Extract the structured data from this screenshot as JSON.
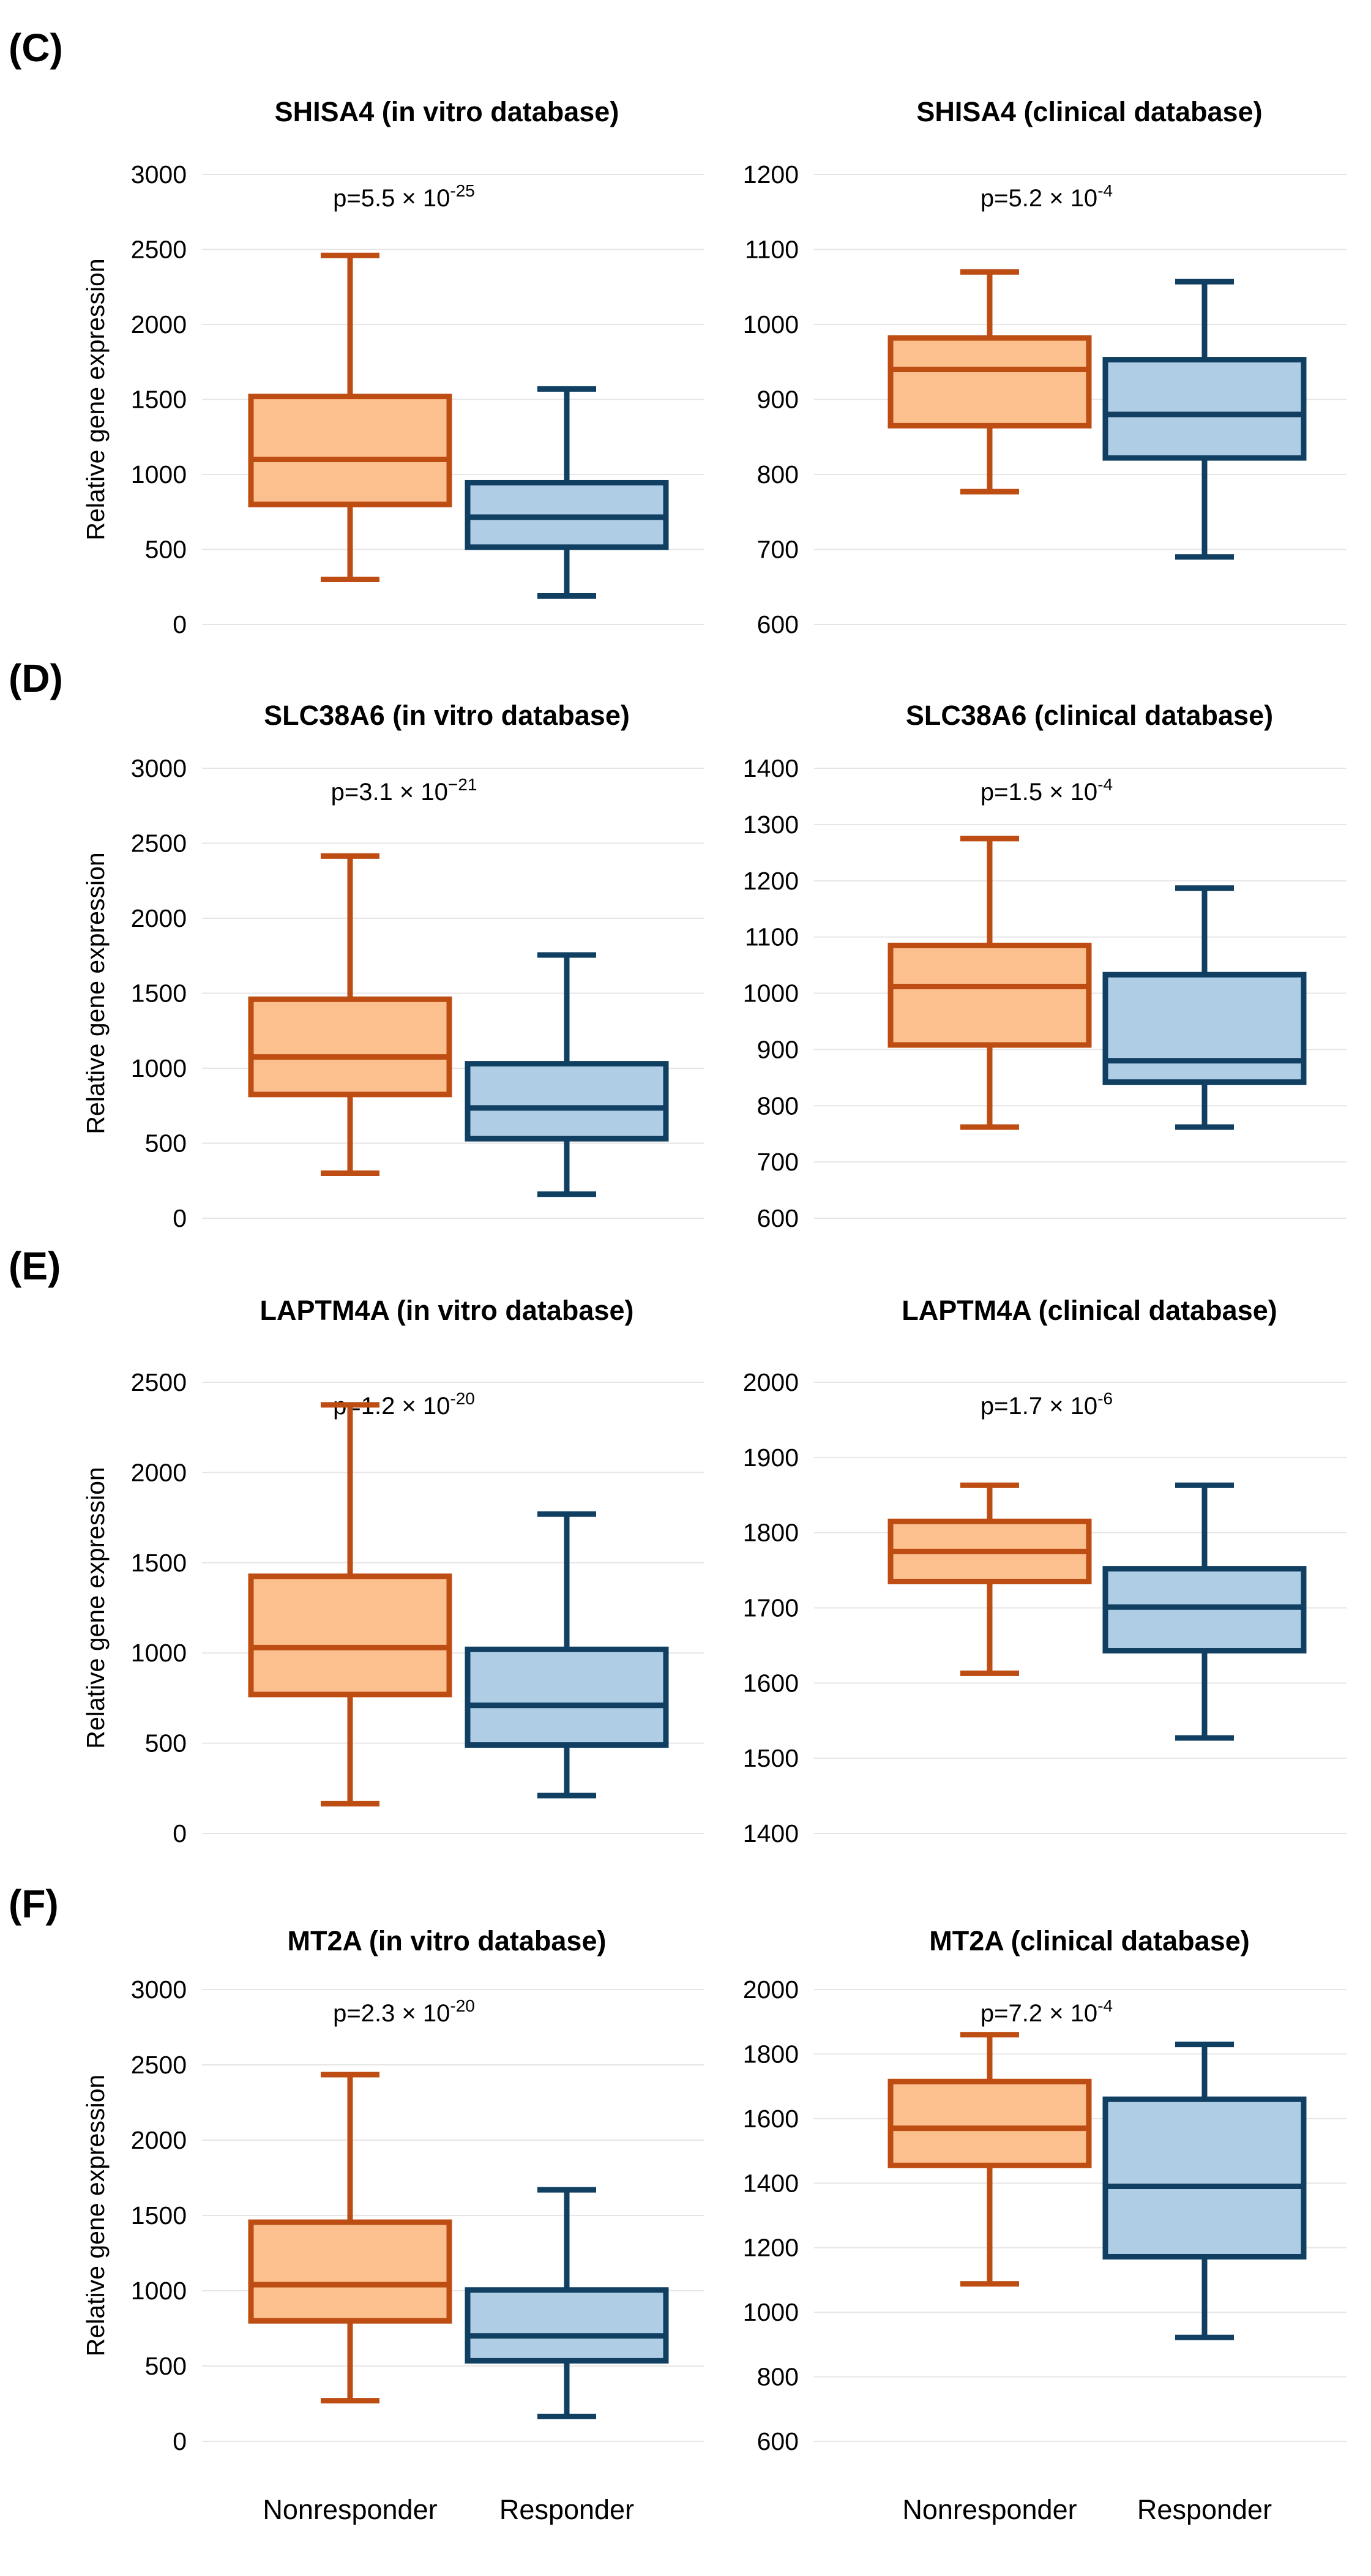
{
  "colors": {
    "nonresponder_fill": "#fcc08f",
    "nonresponder_stroke": "#bd4d12",
    "responder_fill": "#b0cde6",
    "responder_stroke": "#103f62",
    "grid": "#e6e6e6"
  },
  "x_categories": [
    "Nonresponder",
    "Responder"
  ],
  "panels": [
    {
      "label": "(C)"
    },
    {
      "label": "(D)"
    },
    {
      "label": "(E)"
    },
    {
      "label": "(F)"
    }
  ],
  "chart_data": [
    {
      "panel": 0,
      "type": "boxplot",
      "title": "SHISA4 (in vitro database)",
      "ylabel": "Relative gene expression",
      "ylim": [
        0,
        3000
      ],
      "yticks": [
        0,
        500,
        1000,
        1500,
        2000,
        2500,
        3000
      ],
      "categories": [
        "Nonresponder",
        "Responder"
      ],
      "pvalue": {
        "base": "p=5.5 × 10",
        "exp": "-25"
      },
      "boxes": [
        {
          "name": "Nonresponder",
          "min": 300,
          "q1": 800,
          "median": 1100,
          "q3": 1520,
          "max": 2460
        },
        {
          "name": "Responder",
          "min": 190,
          "q1": 515,
          "median": 715,
          "q3": 945,
          "max": 1570
        }
      ]
    },
    {
      "panel": 0,
      "type": "boxplot",
      "title": "SHISA4 (clinical database)",
      "ylabel": "",
      "ylim": [
        600,
        1200
      ],
      "yticks": [
        600,
        700,
        800,
        900,
        1000,
        1100,
        1200
      ],
      "categories": [
        "Nonresponder",
        "Responder"
      ],
      "pvalue": {
        "base": "p=5.2 × 10",
        "exp": "-4"
      },
      "boxes": [
        {
          "name": "Nonresponder",
          "min": 777,
          "q1": 865,
          "median": 940,
          "q3": 982,
          "max": 1070
        },
        {
          "name": "Responder",
          "min": 690,
          "q1": 822,
          "median": 880,
          "q3": 953,
          "max": 1057
        }
      ]
    },
    {
      "panel": 1,
      "type": "boxplot",
      "title": "SLC38A6 (in vitro database)",
      "ylabel": "Relative gene expression",
      "ylim": [
        0,
        3000
      ],
      "yticks": [
        0,
        500,
        1000,
        1500,
        2000,
        2500,
        3000
      ],
      "categories": [
        "Nonresponder",
        "Responder"
      ],
      "pvalue": {
        "base": "p=3.1 × 10",
        "exp": "−21"
      },
      "boxes": [
        {
          "name": "Nonresponder",
          "min": 300,
          "q1": 825,
          "median": 1075,
          "q3": 1460,
          "max": 2415
        },
        {
          "name": "Responder",
          "min": 160,
          "q1": 530,
          "median": 735,
          "q3": 1030,
          "max": 1755
        }
      ]
    },
    {
      "panel": 1,
      "type": "boxplot",
      "title": "SLC38A6 (clinical database)",
      "ylabel": "",
      "ylim": [
        600,
        1400
      ],
      "yticks": [
        600,
        700,
        800,
        900,
        1000,
        1100,
        1200,
        1300,
        1400
      ],
      "categories": [
        "Nonresponder",
        "Responder"
      ],
      "pvalue": {
        "base": "p=1.5 × 10",
        "exp": "-4"
      },
      "boxes": [
        {
          "name": "Nonresponder",
          "min": 762,
          "q1": 908,
          "median": 1012,
          "q3": 1085,
          "max": 1275
        },
        {
          "name": "Responder",
          "min": 762,
          "q1": 842,
          "median": 880,
          "q3": 1033,
          "max": 1187
        }
      ]
    },
    {
      "panel": 2,
      "type": "boxplot",
      "title": "LAPTM4A (in vitro database)",
      "ylabel": "Relative gene expression",
      "ylim": [
        0,
        2500
      ],
      "yticks": [
        0,
        500,
        1000,
        1500,
        2000,
        2500
      ],
      "categories": [
        "Nonresponder",
        "Responder"
      ],
      "pvalue": {
        "base": "p=1.2 × 10",
        "exp": "-20"
      },
      "boxes": [
        {
          "name": "Nonresponder",
          "min": 165,
          "q1": 770,
          "median": 1030,
          "q3": 1425,
          "max": 2375
        },
        {
          "name": "Responder",
          "min": 210,
          "q1": 490,
          "median": 710,
          "q3": 1020,
          "max": 1770
        }
      ]
    },
    {
      "panel": 2,
      "type": "boxplot",
      "title": "LAPTM4A (clinical database)",
      "ylabel": "",
      "ylim": [
        1400,
        2000
      ],
      "yticks": [
        1400,
        1500,
        1600,
        1700,
        1800,
        1900,
        2000
      ],
      "categories": [
        "Nonresponder",
        "Responder"
      ],
      "pvalue": {
        "base": "p=1.7 × 10",
        "exp": "-6"
      },
      "boxes": [
        {
          "name": "Nonresponder",
          "min": 1613,
          "q1": 1735,
          "median": 1775,
          "q3": 1815,
          "max": 1863
        },
        {
          "name": "Responder",
          "min": 1527,
          "q1": 1643,
          "median": 1701,
          "q3": 1752,
          "max": 1863
        }
      ]
    },
    {
      "panel": 3,
      "type": "boxplot",
      "title": "MT2A (in vitro database)",
      "ylabel": "Relative gene expression",
      "ylim": [
        0,
        3000
      ],
      "yticks": [
        0,
        500,
        1000,
        1500,
        2000,
        2500,
        3000
      ],
      "categories": [
        "Nonresponder",
        "Responder"
      ],
      "pvalue": {
        "base": "p=2.3 × 10",
        "exp": "-20"
      },
      "boxes": [
        {
          "name": "Nonresponder",
          "min": 270,
          "q1": 800,
          "median": 1040,
          "q3": 1455,
          "max": 2435
        },
        {
          "name": "Responder",
          "min": 165,
          "q1": 535,
          "median": 700,
          "q3": 1005,
          "max": 1670
        }
      ]
    },
    {
      "panel": 3,
      "type": "boxplot",
      "title": "MT2A (clinical database)",
      "ylabel": "",
      "ylim": [
        600,
        2000
      ],
      "yticks": [
        600,
        800,
        1000,
        1200,
        1400,
        1600,
        1800,
        2000
      ],
      "categories": [
        "Nonresponder",
        "Responder"
      ],
      "pvalue": {
        "base": "p=7.2 × 10",
        "exp": "-4"
      },
      "boxes": [
        {
          "name": "Nonresponder",
          "min": 1088,
          "q1": 1455,
          "median": 1570,
          "q3": 1715,
          "max": 1860
        },
        {
          "name": "Responder",
          "min": 922,
          "q1": 1172,
          "median": 1390,
          "q3": 1660,
          "max": 1830
        }
      ]
    }
  ]
}
